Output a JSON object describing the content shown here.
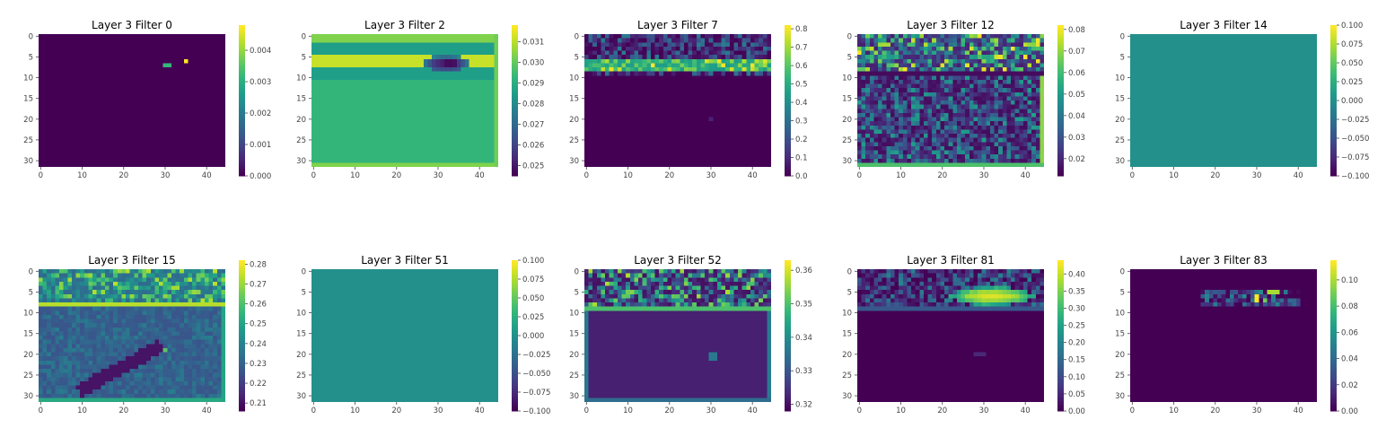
{
  "figure": {
    "layout": "2 rows x 5 columns of heatmaps with colorbars"
  },
  "chart_data": [
    {
      "type": "heatmap",
      "title": "Layer 3 Filter 0",
      "colormap": "viridis",
      "grid": false,
      "rows": 32,
      "cols": 45,
      "xticks": [
        0,
        10,
        20,
        30,
        40
      ],
      "yticks": [
        0,
        5,
        10,
        15,
        20,
        25,
        30
      ],
      "colorbar": {
        "min": 0.0,
        "max": 0.0048,
        "ticks": [
          0.0,
          0.001,
          0.002,
          0.003,
          0.004
        ],
        "labels": [
          "0.000",
          "0.001",
          "0.002",
          "0.003",
          "0.004"
        ]
      },
      "background": 0.0,
      "features": [
        {
          "kind": "rect",
          "r0": 6.5,
          "r1": 7.5,
          "c0": 29.5,
          "c1": 31.5,
          "v": 0.0032
        },
        {
          "kind": "rect",
          "r0": 5.5,
          "r1": 6.5,
          "c0": 34.5,
          "c1": 35.5,
          "v": 0.0048
        }
      ]
    },
    {
      "type": "heatmap",
      "title": "Layer 3 Filter 2",
      "colormap": "viridis",
      "grid": false,
      "rows": 32,
      "cols": 45,
      "xticks": [
        0,
        10,
        20,
        30,
        40
      ],
      "yticks": [
        0,
        5,
        10,
        15,
        20,
        25,
        30
      ],
      "colorbar": {
        "min": 0.0245,
        "max": 0.0318,
        "ticks": [
          0.025,
          0.026,
          0.027,
          0.028,
          0.029,
          0.03,
          0.031
        ],
        "labels": [
          "0.025",
          "0.026",
          "0.027",
          "0.028",
          "0.029",
          "0.030",
          "0.031"
        ]
      },
      "background": 0.0293,
      "features": [
        {
          "kind": "rect",
          "r0": -0.5,
          "r1": 1.5,
          "c0": -0.5,
          "c1": 44.5,
          "v": 0.0304
        },
        {
          "kind": "rect",
          "r0": 1.5,
          "r1": 4.5,
          "c0": -0.5,
          "c1": 44.5,
          "v": 0.0286
        },
        {
          "kind": "rect",
          "r0": 4.5,
          "r1": 7.5,
          "c0": -0.5,
          "c1": 44.5,
          "v": 0.0312
        },
        {
          "kind": "rect",
          "r0": 7.5,
          "r1": 10.5,
          "c0": -0.5,
          "c1": 44.5,
          "v": 0.0286
        },
        {
          "kind": "rect",
          "r0": 30.5,
          "r1": 31.5,
          "c0": -0.5,
          "c1": 44.5,
          "v": 0.0304
        },
        {
          "kind": "rect",
          "r0": -0.5,
          "r1": 31.5,
          "c0": 43.5,
          "c1": 44.5,
          "v": 0.0302
        },
        {
          "kind": "blob",
          "r": 6.5,
          "c": 32,
          "rr": 1.8,
          "rc": 6,
          "v": 0.0248
        },
        {
          "kind": "blob",
          "r": 6.5,
          "c": 33,
          "rr": 0.8,
          "rc": 2.5,
          "v": 0.0246
        }
      ]
    },
    {
      "type": "heatmap",
      "title": "Layer 3 Filter 7",
      "colormap": "viridis",
      "grid": false,
      "rows": 32,
      "cols": 45,
      "xticks": [
        0,
        10,
        20,
        30,
        40
      ],
      "yticks": [
        0,
        5,
        10,
        15,
        20,
        25,
        30
      ],
      "colorbar": {
        "min": 0.0,
        "max": 0.82,
        "ticks": [
          0.0,
          0.1,
          0.2,
          0.3,
          0.4,
          0.5,
          0.6,
          0.7,
          0.8
        ],
        "labels": [
          "0.0",
          "0.1",
          "0.2",
          "0.3",
          "0.4",
          "0.5",
          "0.6",
          "0.7",
          "0.8"
        ]
      },
      "background": 0.0,
      "features": [
        {
          "kind": "noise",
          "r0": 0,
          "r1": 9,
          "c0": 0,
          "c1": 44,
          "lo": 0.0,
          "hi": 0.35,
          "seed": 7
        },
        {
          "kind": "noise",
          "r0": 6,
          "r1": 8,
          "c0": 0,
          "c1": 44,
          "lo": 0.45,
          "hi": 0.82,
          "seed": 11
        },
        {
          "kind": "rect",
          "r0": 19.5,
          "r1": 20.5,
          "c0": 29.5,
          "c1": 30.5,
          "v": 0.08
        }
      ]
    },
    {
      "type": "heatmap",
      "title": "Layer 3 Filter 12",
      "colormap": "viridis",
      "grid": false,
      "rows": 32,
      "cols": 45,
      "xticks": [
        0,
        10,
        20,
        30,
        40
      ],
      "yticks": [
        0,
        5,
        10,
        15,
        20,
        25,
        30
      ],
      "colorbar": {
        "min": 0.012,
        "max": 0.082,
        "ticks": [
          0.02,
          0.03,
          0.04,
          0.05,
          0.06,
          0.07,
          0.08
        ],
        "labels": [
          "0.02",
          "0.03",
          "0.04",
          "0.05",
          "0.06",
          "0.07",
          "0.08"
        ]
      },
      "background": 0.03,
      "features": [
        {
          "kind": "noise",
          "r0": 0,
          "r1": 8,
          "c0": 0,
          "c1": 44,
          "lo": 0.018,
          "hi": 0.082,
          "seed": 3
        },
        {
          "kind": "rect",
          "r0": 8.5,
          "r1": 9.5,
          "c0": -0.5,
          "c1": 44.5,
          "v": 0.014
        },
        {
          "kind": "noise",
          "r0": 10,
          "r1": 31,
          "c0": 0,
          "c1": 44,
          "lo": 0.014,
          "hi": 0.052,
          "seed": 5
        },
        {
          "kind": "rect",
          "r0": 9.5,
          "r1": 31.5,
          "c0": 43.5,
          "c1": 44.5,
          "v": 0.07
        },
        {
          "kind": "rect",
          "r0": 30.5,
          "r1": 31.5,
          "c0": -0.5,
          "c1": 44.5,
          "v": 0.062
        }
      ]
    },
    {
      "type": "heatmap",
      "title": "Layer 3 Filter 14",
      "colormap": "viridis",
      "grid": false,
      "rows": 32,
      "cols": 45,
      "xticks": [
        0,
        10,
        20,
        30,
        40
      ],
      "yticks": [
        0,
        5,
        10,
        15,
        20,
        25,
        30
      ],
      "colorbar": {
        "min": -0.1,
        "max": 0.1,
        "ticks": [
          -0.1,
          -0.075,
          -0.05,
          -0.025,
          0.0,
          0.025,
          0.05,
          0.075,
          0.1
        ],
        "labels": [
          "−0.100",
          "−0.075",
          "−0.050",
          "−0.025",
          "0.000",
          "0.025",
          "0.050",
          "0.075",
          "0.100"
        ]
      },
      "background": 0.0,
      "features": []
    },
    {
      "type": "heatmap",
      "title": "Layer 3 Filter 15",
      "colormap": "viridis",
      "grid": false,
      "rows": 32,
      "cols": 45,
      "xticks": [
        0,
        10,
        20,
        30,
        40
      ],
      "yticks": [
        0,
        5,
        10,
        15,
        20,
        25,
        30
      ],
      "colorbar": {
        "min": 0.206,
        "max": 0.282,
        "ticks": [
          0.21,
          0.22,
          0.23,
          0.24,
          0.25,
          0.26,
          0.27,
          0.28
        ],
        "labels": [
          "0.21",
          "0.22",
          "0.23",
          "0.24",
          "0.25",
          "0.26",
          "0.27",
          "0.28"
        ]
      },
      "background": 0.232,
      "features": [
        {
          "kind": "noise",
          "r0": 0,
          "r1": 8,
          "c0": 0,
          "c1": 44,
          "lo": 0.232,
          "hi": 0.275,
          "seed": 15
        },
        {
          "kind": "rect",
          "r0": 7.5,
          "r1": 8.5,
          "c0": -0.5,
          "c1": 44.5,
          "v": 0.274
        },
        {
          "kind": "noise",
          "r0": 9,
          "r1": 30,
          "c0": 0,
          "c1": 44,
          "lo": 0.226,
          "hi": 0.238,
          "seed": 21
        },
        {
          "kind": "diag",
          "r0": 18,
          "c0": 29,
          "r1": 29,
          "c1": 9,
          "w": 1.6,
          "v": 0.21
        },
        {
          "kind": "rect",
          "r0": 18.5,
          "r1": 19.5,
          "c0": 29.5,
          "c1": 30.5,
          "v": 0.262
        },
        {
          "kind": "rect",
          "r0": 30.5,
          "r1": 31.5,
          "c0": -0.5,
          "c1": 44.5,
          "v": 0.252
        },
        {
          "kind": "rect",
          "r0": 8.5,
          "r1": 31.5,
          "c0": 43.5,
          "c1": 44.5,
          "v": 0.25
        }
      ]
    },
    {
      "type": "heatmap",
      "title": "Layer 3 Filter 51",
      "colormap": "viridis",
      "grid": false,
      "rows": 32,
      "cols": 45,
      "xticks": [
        0,
        10,
        20,
        30,
        40
      ],
      "yticks": [
        0,
        5,
        10,
        15,
        20,
        25,
        30
      ],
      "colorbar": {
        "min": -0.1,
        "max": 0.1,
        "ticks": [
          -0.1,
          -0.075,
          -0.05,
          -0.025,
          0.0,
          0.025,
          0.05,
          0.075,
          0.1
        ],
        "labels": [
          "−0.100",
          "−0.075",
          "−0.050",
          "−0.025",
          "0.000",
          "0.025",
          "0.050",
          "0.075",
          "0.100"
        ]
      },
      "background": 0.0,
      "features": []
    },
    {
      "type": "heatmap",
      "title": "Layer 3 Filter 52",
      "colormap": "viridis",
      "grid": false,
      "rows": 32,
      "cols": 45,
      "xticks": [
        0,
        10,
        20,
        30,
        40
      ],
      "yticks": [
        0,
        5,
        10,
        15,
        20,
        25,
        30
      ],
      "colorbar": {
        "min": 0.318,
        "max": 0.363,
        "ticks": [
          0.32,
          0.33,
          0.34,
          0.35,
          0.36
        ],
        "labels": [
          "0.32",
          "0.33",
          "0.34",
          "0.35",
          "0.36"
        ]
      },
      "background": 0.322,
      "features": [
        {
          "kind": "noise",
          "r0": 0,
          "r1": 8,
          "c0": 0,
          "c1": 44,
          "lo": 0.32,
          "hi": 0.358,
          "seed": 52
        },
        {
          "kind": "rect",
          "r0": 8.5,
          "r1": 9.5,
          "c0": -0.5,
          "c1": 44.5,
          "v": 0.35
        },
        {
          "kind": "rect",
          "r0": 9.5,
          "r1": 31.5,
          "c0": -0.5,
          "c1": 0.5,
          "v": 0.336
        },
        {
          "kind": "rect",
          "r0": 9.5,
          "r1": 31.5,
          "c0": 43.5,
          "c1": 44.5,
          "v": 0.336
        },
        {
          "kind": "rect",
          "r0": 30.5,
          "r1": 31.5,
          "c0": -0.5,
          "c1": 44.5,
          "v": 0.334
        },
        {
          "kind": "blob",
          "r": 20.5,
          "c": 30.5,
          "rr": 1.6,
          "rc": 1.4,
          "v": 0.338
        }
      ]
    },
    {
      "type": "heatmap",
      "title": "Layer 3 Filter 81",
      "colormap": "viridis",
      "grid": false,
      "rows": 32,
      "cols": 45,
      "xticks": [
        0,
        10,
        20,
        30,
        40
      ],
      "yticks": [
        0,
        5,
        10,
        15,
        20,
        25,
        30
      ],
      "colorbar": {
        "min": 0.0,
        "max": 0.44,
        "ticks": [
          0.0,
          0.05,
          0.1,
          0.15,
          0.2,
          0.25,
          0.3,
          0.35,
          0.4
        ],
        "labels": [
          "0.00",
          "0.05",
          "0.10",
          "0.15",
          "0.20",
          "0.25",
          "0.30",
          "0.35",
          "0.40"
        ]
      },
      "background": 0.0,
      "features": [
        {
          "kind": "noise",
          "r0": 0,
          "r1": 9,
          "c0": 0,
          "c1": 44,
          "lo": 0.0,
          "hi": 0.2,
          "seed": 81
        },
        {
          "kind": "blob",
          "r": 6,
          "c": 32,
          "rr": 2.2,
          "rc": 10,
          "v": 0.42
        },
        {
          "kind": "rect",
          "r0": 8.5,
          "r1": 9.5,
          "c0": -0.5,
          "c1": 44.5,
          "v": 0.12
        },
        {
          "kind": "rect",
          "r0": 19.5,
          "r1": 20.5,
          "c0": 27.5,
          "c1": 30.5,
          "v": 0.05
        }
      ]
    },
    {
      "type": "heatmap",
      "title": "Layer 3 Filter 83",
      "colormap": "viridis",
      "grid": false,
      "rows": 32,
      "cols": 45,
      "xticks": [
        0,
        10,
        20,
        30,
        40
      ],
      "yticks": [
        0,
        5,
        10,
        15,
        20,
        25,
        30
      ],
      "colorbar": {
        "min": 0.0,
        "max": 0.115,
        "ticks": [
          0.0,
          0.02,
          0.04,
          0.06,
          0.08,
          0.1
        ],
        "labels": [
          "0.00",
          "0.02",
          "0.04",
          "0.06",
          "0.08",
          "0.10"
        ]
      },
      "background": 0.0,
      "features": [
        {
          "kind": "noise",
          "r0": 5,
          "r1": 8,
          "c0": 17,
          "c1": 40,
          "lo": 0.0,
          "hi": 0.06,
          "seed": 83
        },
        {
          "kind": "rect",
          "r0": 4.5,
          "r1": 5.5,
          "c0": 32.5,
          "c1": 35.5,
          "v": 0.1
        },
        {
          "kind": "rect",
          "r0": 5.5,
          "r1": 7.5,
          "c0": 29.5,
          "c1": 30.5,
          "v": 0.115
        },
        {
          "kind": "rect",
          "r0": 6.5,
          "r1": 7.5,
          "c0": 31.5,
          "c1": 32.5,
          "v": 0.09
        }
      ]
    }
  ]
}
